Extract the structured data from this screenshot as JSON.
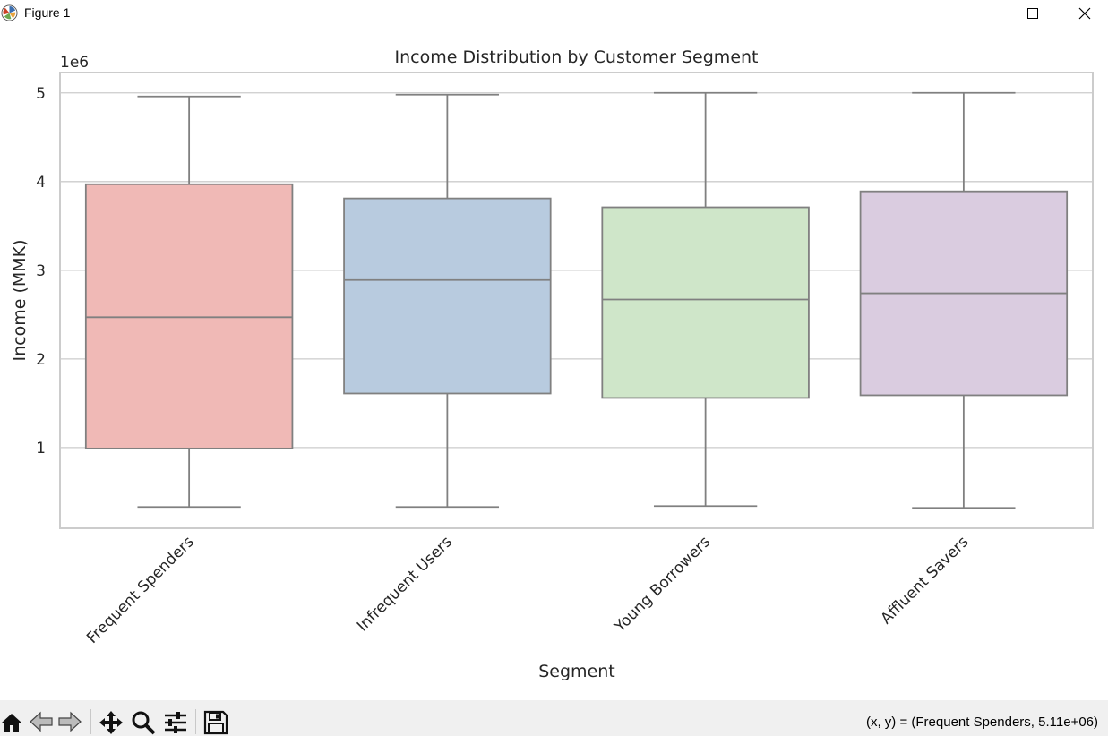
{
  "window": {
    "title": "Figure 1"
  },
  "toolbar": {
    "items": [
      "home-icon",
      "back-arrow-icon",
      "forward-arrow-icon",
      "pan-icon",
      "zoom-icon",
      "configure-subplots-icon",
      "save-icon"
    ],
    "coords_readout": "(x, y) = (Frequent Spenders, 5.11e+06)"
  },
  "chart_data": {
    "type": "box",
    "title": "Income Distribution by Customer Segment",
    "xlabel": "Segment",
    "ylabel": "Income (MMK)",
    "y_offset_label": "1e6",
    "ylim": [
      90000,
      5230000
    ],
    "yticks": [
      1000000,
      2000000,
      3000000,
      4000000,
      5000000
    ],
    "ytick_labels": [
      "1",
      "2",
      "3",
      "4",
      "5"
    ],
    "grid": "horizontal",
    "categories": [
      "Frequent Spenders",
      "Infrequent Users",
      "Young Borrowers",
      "Affluent Savers"
    ],
    "boxes": [
      {
        "category": "Frequent Spenders",
        "whisker_low": 330000,
        "q1": 990000,
        "median": 2470000,
        "q3": 3970000,
        "whisker_high": 4960000,
        "color": "#f0b9b6"
      },
      {
        "category": "Infrequent Users",
        "whisker_low": 330000,
        "q1": 1610000,
        "median": 2890000,
        "q3": 3810000,
        "whisker_high": 4980000,
        "color": "#b8cbdf"
      },
      {
        "category": "Young Borrowers",
        "whisker_low": 340000,
        "q1": 1560000,
        "median": 2670000,
        "q3": 3710000,
        "whisker_high": 5000000,
        "color": "#cfe6c9"
      },
      {
        "category": "Affluent Savers",
        "whisker_low": 320000,
        "q1": 1590000,
        "median": 2740000,
        "q3": 3890000,
        "whisker_high": 5000000,
        "color": "#dacce0"
      }
    ],
    "colors": {
      "box_edge": "#808080",
      "grid": "#cccccc",
      "frame": "#cccccc",
      "text": "#262626"
    }
  }
}
